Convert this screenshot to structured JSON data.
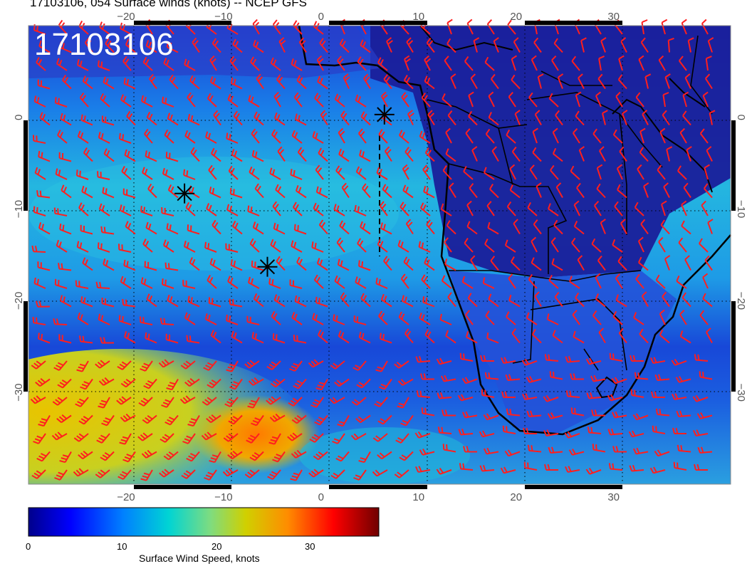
{
  "header": {
    "title": "17103106, 054 Surface winds (knots) -- NCEP GFS",
    "stamp": "17103106"
  },
  "map": {
    "lon_range": [
      -30,
      42
    ],
    "lat_range": [
      -40,
      10
    ],
    "lon_ticks": [
      -20,
      -10,
      0,
      10,
      20,
      30
    ],
    "lat_ticks": [
      0,
      -10,
      -20,
      -30
    ],
    "lon_tick_labels": [
      "−20",
      "−10",
      "0",
      "10",
      "20",
      "30"
    ],
    "lat_tick_labels": [
      "0",
      "−10",
      "−20",
      "−30"
    ],
    "barb_color": "#ff1e1e",
    "coast_color": "#000000",
    "storm_markers": [
      {
        "name": "marker-1",
        "lon": 6.5,
        "lat": 0.3
      },
      {
        "name": "marker-2",
        "lon": -14,
        "lat": -8.3
      },
      {
        "name": "marker-3",
        "lon": -5.5,
        "lat": -16.3
      }
    ]
  },
  "colorbar": {
    "min": 0,
    "max": 37,
    "ticks": [
      "0",
      "10",
      "20",
      "30"
    ],
    "tick_values": [
      0,
      10,
      20,
      30
    ],
    "title": "Surface Wind Speed, knots",
    "colors": [
      "#00008b",
      "#0000ff",
      "#0080ff",
      "#00cfcf",
      "#80e080",
      "#cccc00",
      "#ff8000",
      "#ff0000",
      "#8b0000"
    ]
  }
}
